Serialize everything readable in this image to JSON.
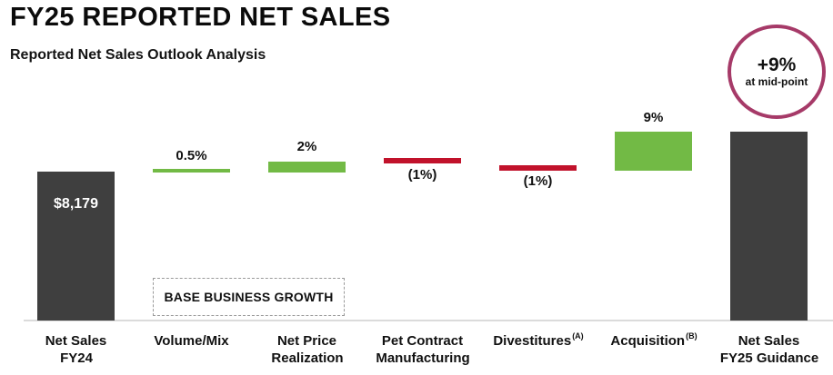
{
  "header": {
    "title": "FY25 REPORTED NET SALES",
    "subtitle": "Reported Net Sales Outlook Analysis"
  },
  "badge": {
    "value": "+9%",
    "caption": "at mid-point"
  },
  "annotation_box": {
    "label": "BASE BUSINESS GROWTH"
  },
  "colors": {
    "bar_dark": "#3F3F3F",
    "bar_green": "#72BA45",
    "bar_red": "#C1122B",
    "badge_ring": "#A63A68",
    "baseline": "#DBDBDB"
  },
  "chart_data": {
    "type": "bar",
    "subtype": "waterfall",
    "title": "FY25 REPORTED NET SALES",
    "subtitle": "Reported Net Sales Outlook Analysis",
    "axes": "none",
    "grid": false,
    "legend": "none",
    "base_value": 8179,
    "base_value_label": "$8,179",
    "net_change_at_midpoint_pct": 9,
    "categories": [
      "Net Sales FY24",
      "Volume/Mix",
      "Net Price Realization",
      "Pet Contract Manufacturing",
      "Divestitures (A)",
      "Acquisition (B)",
      "Net Sales FY25 Guidance"
    ],
    "values": [
      8179,
      0.5,
      2,
      -1,
      -1,
      9,
      null
    ],
    "value_labels": [
      "$8,179",
      "0.5%",
      "2%",
      "(1%)",
      "(1%)",
      "9%",
      ""
    ],
    "annotations": [
      "BASE BUSINESS GROWTH",
      "+9% at mid-point"
    ],
    "columns": [
      {
        "line1": "Net Sales",
        "line2": "FY24",
        "value_label": "$8,179",
        "value": 8179,
        "kind": "total",
        "color": "dark",
        "value_pos": "inside"
      },
      {
        "line1": "Volume/Mix",
        "line2": "",
        "value_label": "0.5%",
        "value": 0.5,
        "kind": "increase",
        "color": "green",
        "value_pos": "above"
      },
      {
        "line1": "Net Price",
        "line2": "Realization",
        "value_label": "2%",
        "value": 2,
        "kind": "increase",
        "color": "green",
        "value_pos": "above"
      },
      {
        "line1": "Pet Contract",
        "line2": "Manufacturing",
        "value_label": "(1%)",
        "value": -1,
        "kind": "decrease",
        "color": "red",
        "value_pos": "below"
      },
      {
        "line1": "Divestitures",
        "sup": "(A)",
        "value_label": "(1%)",
        "value": -1,
        "kind": "decrease",
        "color": "red",
        "value_pos": "below"
      },
      {
        "line1": "Acquisition",
        "sup": "(B)",
        "value_label": "9%",
        "value": 9,
        "kind": "increase",
        "color": "green",
        "value_pos": "above"
      },
      {
        "line1": "Net Sales",
        "line2": "FY25 Guidance",
        "value_label": "",
        "value": null,
        "kind": "total",
        "color": "dark",
        "value_pos": "none"
      }
    ]
  }
}
